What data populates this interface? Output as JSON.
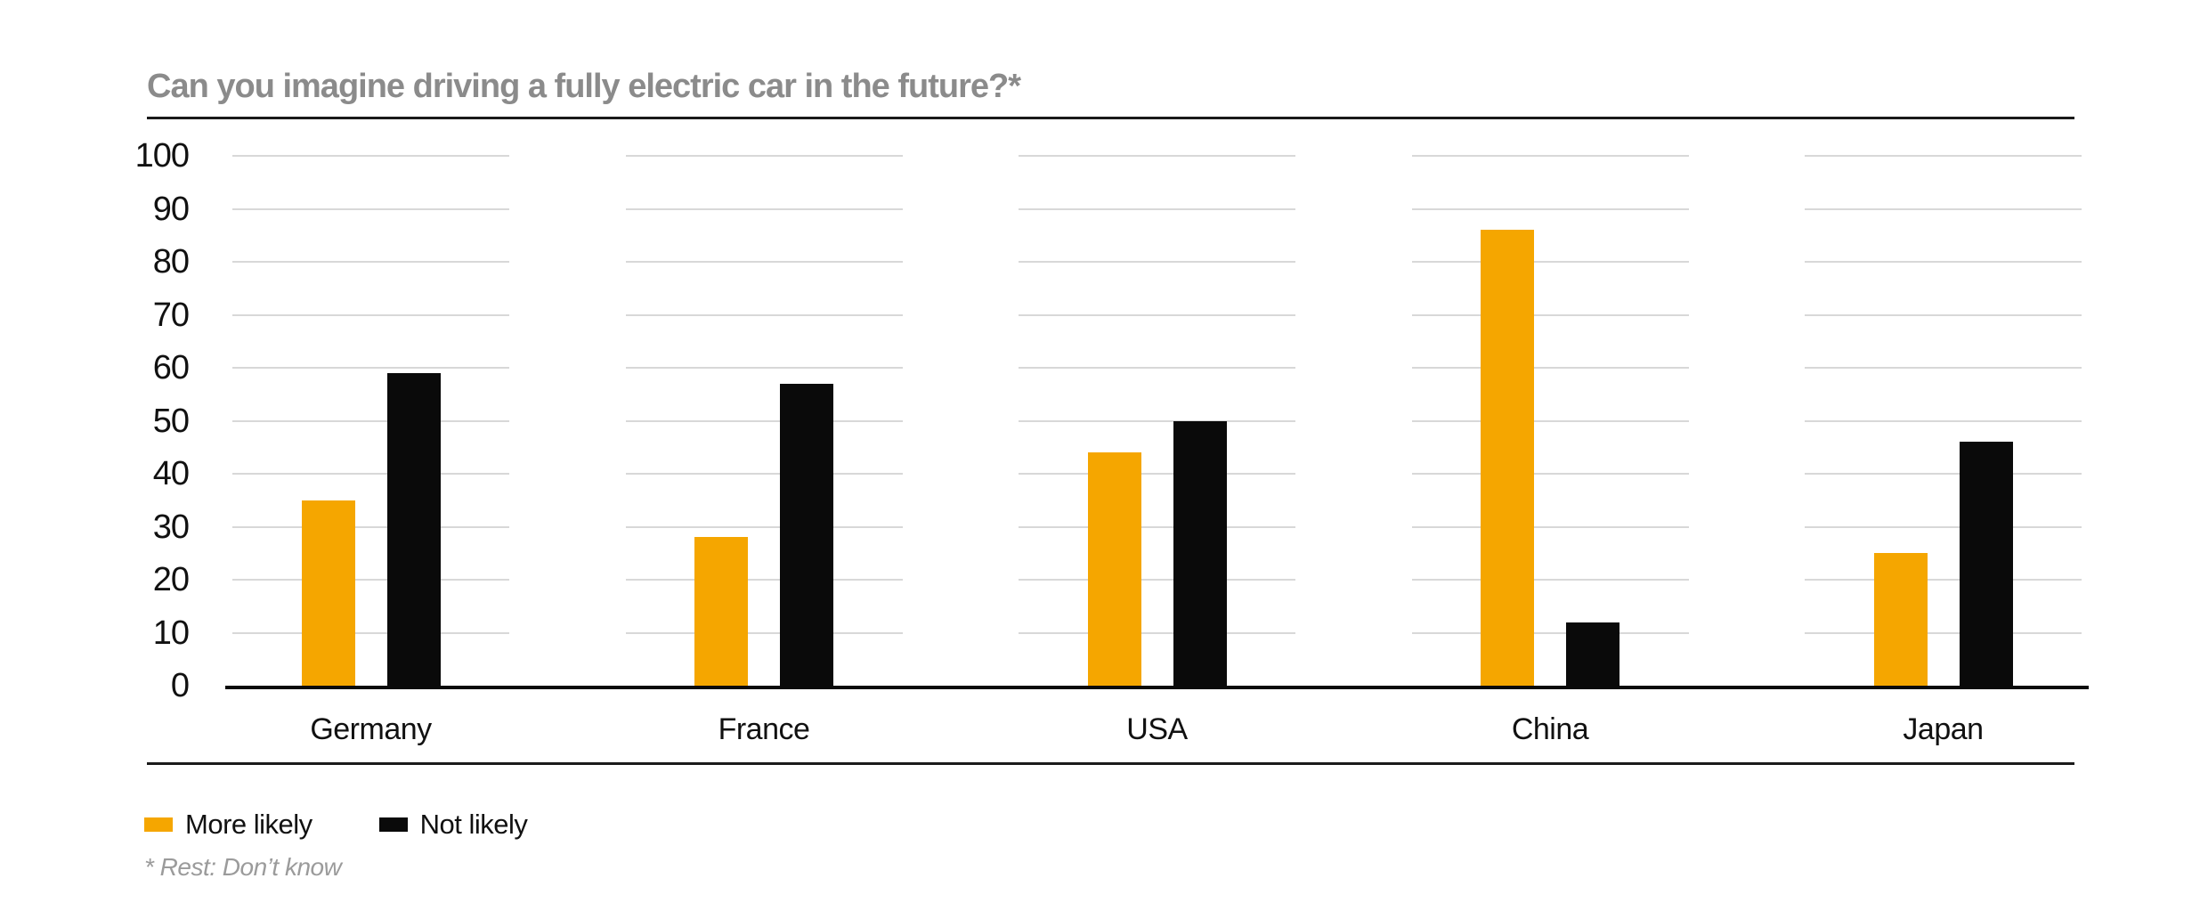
{
  "title": "Can you imagine driving a fully electric car in the future?*",
  "footnote": "* Rest: Don’t know",
  "colors": {
    "accent_orange": "#F5A600",
    "bar_black": "#0A0A0A",
    "title_gray": "#8B8B8B",
    "footnote_gray": "#9B9B9B",
    "gridline_gray": "#D8D8D8",
    "rule_black": "#1A1A1A"
  },
  "legend": {
    "items": [
      {
        "label": "More likely",
        "color": "#F5A600"
      },
      {
        "label": "Not likely",
        "color": "#0A0A0A"
      }
    ]
  },
  "y_axis": {
    "ticks": [
      "100",
      "90",
      "80",
      "70",
      "60",
      "50",
      "40",
      "30",
      "20",
      "10",
      "0"
    ]
  },
  "chart_data": {
    "type": "bar",
    "title": "Can you imagine driving a fully electric car in the future?*",
    "categories": [
      "Germany",
      "France",
      "USA",
      "China",
      "Japan"
    ],
    "series": [
      {
        "name": "More likely",
        "color": "#F5A600",
        "values": [
          35,
          28,
          44,
          86,
          25
        ]
      },
      {
        "name": "Not likely",
        "color": "#0A0A0A",
        "values": [
          59,
          57,
          50,
          12,
          46
        ]
      }
    ],
    "ylim": [
      0,
      100
    ],
    "y_tick_step": 10,
    "grid": "horizontal gridlines, segmented per category group",
    "legend_position": "bottom-left",
    "footnote": "* Rest: Don’t know"
  }
}
